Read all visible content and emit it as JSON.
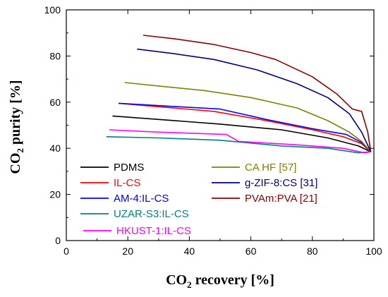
{
  "chart_data": {
    "type": "line",
    "title": "",
    "xlabel": "CO2 recovery [%]",
    "xlabel_parts": {
      "prefix": "CO",
      "sub": "2",
      "suffix": " recovery [%]"
    },
    "ylabel": "CO2 purity [%]",
    "ylabel_parts": {
      "prefix": "CO",
      "sub": "2",
      "suffix": " purity [%]"
    },
    "xlim": [
      0,
      100
    ],
    "ylim": [
      0,
      100
    ],
    "xticks": [
      "0",
      "20",
      "40",
      "60",
      "80",
      "100"
    ],
    "yticks": [
      "0",
      "20",
      "40",
      "60",
      "80",
      "100"
    ],
    "grid": false,
    "legend_position": "bottom-center",
    "series": [
      {
        "name": "PDMS",
        "color": "#000000",
        "x": [
          15,
          30,
          50,
          70,
          85,
          95,
          99
        ],
        "y": [
          54,
          52.5,
          50.5,
          48,
          44.5,
          41,
          38.5
        ]
      },
      {
        "name": "IL-CS",
        "color": "#ff0000",
        "x": [
          17,
          30,
          48,
          65,
          80,
          90,
          96,
          99
        ],
        "y": [
          59.5,
          58,
          56,
          52,
          48,
          45,
          42,
          38.5
        ]
      },
      {
        "name": "AM-4:IL-CS",
        "color": "#0000ff",
        "x": [
          17,
          30,
          50,
          65,
          80,
          91,
          96,
          99
        ],
        "y": [
          59.5,
          58.5,
          57,
          52.5,
          48.5,
          46,
          42.5,
          38.5
        ]
      },
      {
        "name": "UZAR-S3:IL-CS",
        "color": "#008080",
        "x": [
          13,
          30,
          50,
          70,
          85,
          95,
          99
        ],
        "y": [
          45,
          44.5,
          43.5,
          41,
          40,
          38,
          38.5
        ]
      },
      {
        "name": "HKUST-1:IL-CS",
        "color": "#ff00ff",
        "x": [
          14,
          30,
          52,
          56,
          75,
          90,
          97,
          99
        ],
        "y": [
          48,
          47,
          46,
          43,
          41.5,
          40,
          38,
          38.5
        ]
      },
      {
        "name": "CA HF [57]",
        "color": "#808000",
        "x": [
          19,
          30,
          45,
          60,
          75,
          85,
          92,
          96,
          99
        ],
        "y": [
          68.5,
          67,
          65,
          62,
          57.5,
          52,
          47,
          43,
          38.5
        ]
      },
      {
        "name": "g-ZIF-8:CS [31]",
        "color": "#000080",
        "x": [
          23,
          35,
          48,
          62,
          75,
          85,
          92,
          96,
          99
        ],
        "y": [
          83,
          81,
          78.5,
          74,
          68,
          62,
          55,
          47,
          38.5
        ]
      },
      {
        "name": "PVAm:PVA [21]",
        "color": "#8b0000",
        "x": [
          25,
          35,
          48,
          60,
          68,
          80,
          88,
          93,
          96,
          98,
          99
        ],
        "y": [
          89,
          87.5,
          85,
          81.5,
          78.5,
          71,
          63.5,
          57,
          56,
          47,
          38.5
        ]
      }
    ]
  }
}
